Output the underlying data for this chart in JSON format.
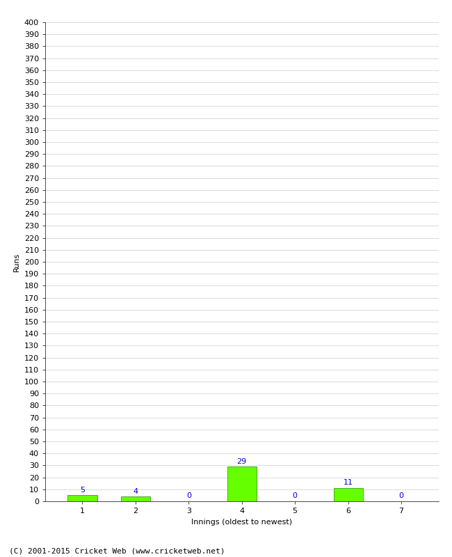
{
  "innings": [
    1,
    2,
    3,
    4,
    5,
    6,
    7
  ],
  "runs": [
    5,
    4,
    0,
    29,
    0,
    11,
    0
  ],
  "bar_color": "#66ff00",
  "bar_edge_color": "#228800",
  "label_color": "#0000cc",
  "xlabel": "Innings (oldest to newest)",
  "ylabel": "Runs",
  "ylim": [
    0,
    400
  ],
  "footer": "(C) 2001-2015 Cricket Web (www.cricketweb.net)",
  "background_color": "#ffffff",
  "grid_color": "#cccccc",
  "label_fontsize": 8,
  "axis_fontsize": 8,
  "ylabel_fontsize": 8,
  "xlabel_fontsize": 8,
  "footer_fontsize": 8,
  "bar_width": 0.55
}
